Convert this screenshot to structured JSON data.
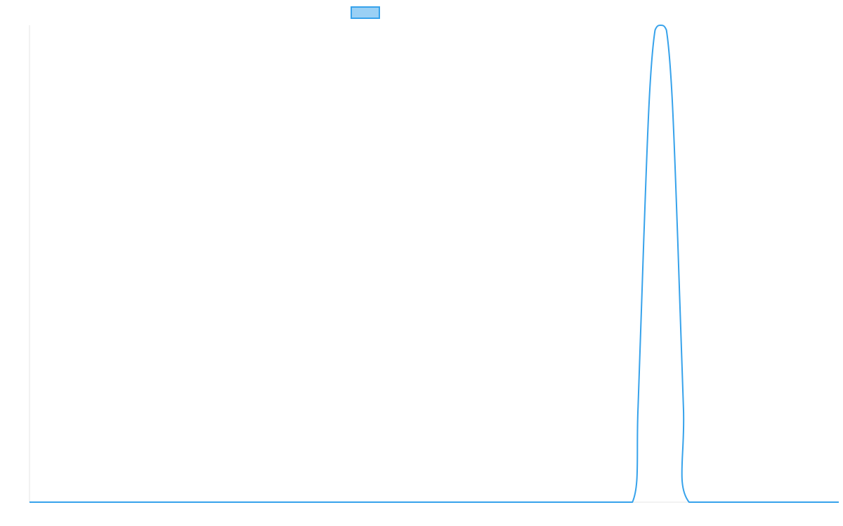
{
  "chart_data": {
    "type": "line",
    "title": "",
    "xlabel": "",
    "ylabel": "",
    "grid": false,
    "legend_placement": "top-center",
    "xlim": [
      0,
      100
    ],
    "ylim": [
      0,
      1
    ],
    "series": [
      {
        "color": "#36a2eb",
        "fill_color": "#9ad0f5",
        "x": [
          0,
          10,
          20,
          30,
          40,
          50,
          60,
          70,
          74.5,
          75.2,
          75.9,
          76.6,
          77.3,
          78.0,
          78.7,
          79.4,
          80.1,
          80.8,
          81.5,
          90,
          100
        ],
        "y": [
          0,
          0,
          0,
          0,
          0,
          0,
          0,
          0,
          0,
          0.2,
          0.55,
          0.85,
          0.99,
          1.0,
          0.99,
          0.85,
          0.55,
          0.2,
          0,
          0,
          0
        ]
      }
    ]
  }
}
